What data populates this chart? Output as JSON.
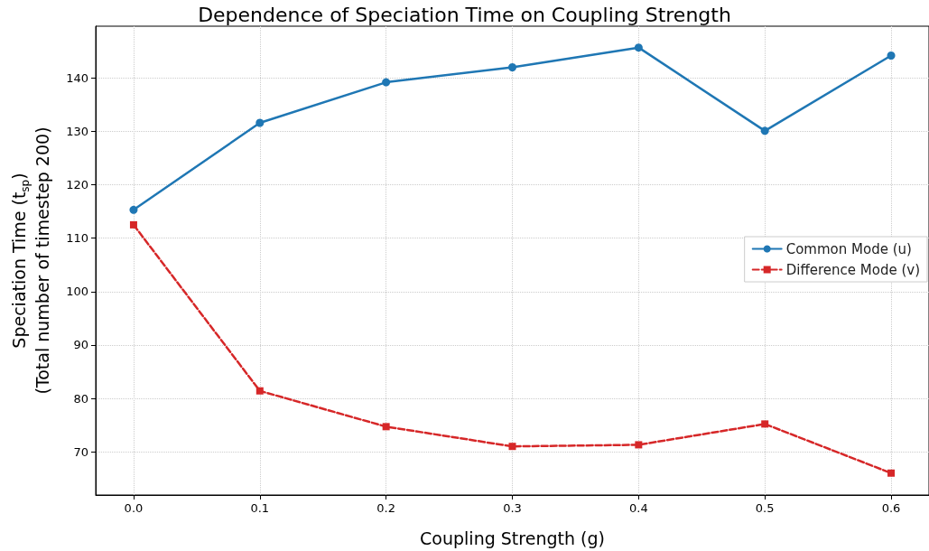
{
  "chart_data": {
    "type": "line",
    "title": "Dependence of Speciation Time on Coupling Strength",
    "xlabel": "Coupling Strength (g)",
    "ylabel": "Speciation Time (t$_{sp}$)\n(Total number of timestep 200)",
    "x": [
      0,
      0.1,
      0.2,
      0.3,
      0.4,
      0.5,
      0.6
    ],
    "series": [
      {
        "name": "Common Mode (u)",
        "color": "#1f77b4",
        "marker": "circle",
        "line_style": "solid",
        "values": [
          115.3,
          131.6,
          139.2,
          142.0,
          145.7,
          130.1,
          144.2
        ]
      },
      {
        "name": "Difference Mode (v)",
        "color": "#d62728",
        "marker": "square",
        "line_style": "dashed",
        "values": [
          112.5,
          81.4,
          74.7,
          71.0,
          71.3,
          75.2,
          66.0
        ]
      }
    ],
    "xlim": [
      -0.03,
      0.63
    ],
    "xticks": [
      {
        "value": 0,
        "label": "0.0"
      },
      0.1,
      0.2,
      0.3,
      0.4,
      0.5,
      0.6
    ],
    "ylim": [
      61.9,
      149.7
    ],
    "yticks": [
      70,
      80,
      90,
      100,
      110,
      120,
      130,
      140
    ],
    "grid": true,
    "legend": "right"
  }
}
